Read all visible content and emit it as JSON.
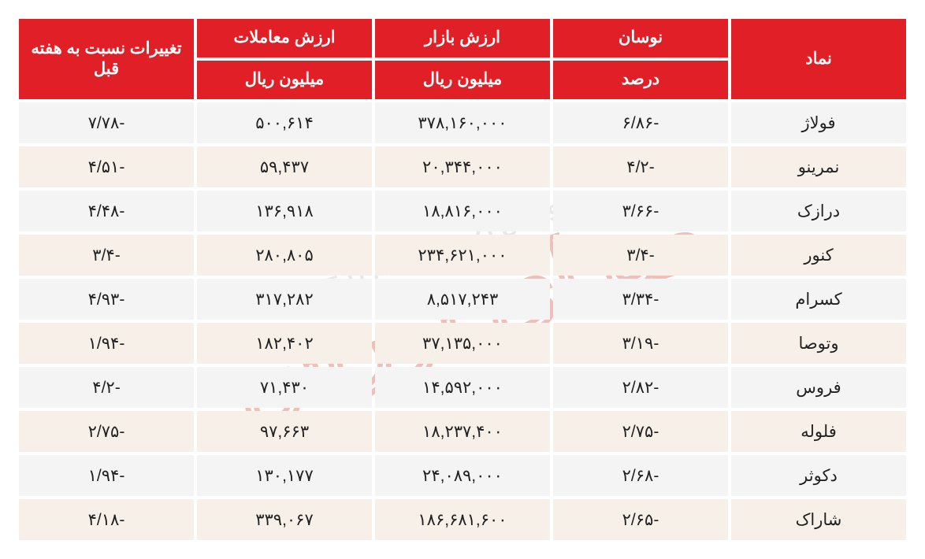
{
  "table": {
    "type": "table",
    "header_bg": "#e11f26",
    "header_fg": "#ffffff",
    "row_odd_bg": "#f4f4f4",
    "row_even_bg": "#f7f0e8",
    "font_family": "Tahoma",
    "cell_fontsize": 21,
    "header_fontsize": 21,
    "columns": [
      {
        "key": "symbol",
        "header_top": "نماد",
        "header_sub": "",
        "rowspan": 2,
        "width_pct": 20
      },
      {
        "key": "volatility",
        "header_top": "نوسان",
        "header_sub": "درصد",
        "rowspan": 1,
        "width_pct": 20
      },
      {
        "key": "market_value",
        "header_top": "ارزش بازار",
        "header_sub": "میلیون ریال",
        "rowspan": 1,
        "width_pct": 20
      },
      {
        "key": "trade_value",
        "header_top": "ارزش معاملات",
        "header_sub": "میلیون ریال",
        "rowspan": 1,
        "width_pct": 20
      },
      {
        "key": "wow_change",
        "header_top": "تغییرات نسبت به هفته قبل",
        "header_sub": "",
        "rowspan": 2,
        "width_pct": 20
      }
    ],
    "rows": [
      {
        "symbol": "فولاژ",
        "volatility": "-۶/۸۶",
        "market_value": "۳۷۸,۱۶۰,۰۰۰",
        "trade_value": "۵۰۰,۶۱۴",
        "wow_change": "-۷/۷۸"
      },
      {
        "symbol": "نمرینو",
        "volatility": "-۴/۲",
        "market_value": "۲۰,۳۴۴,۰۰۰",
        "trade_value": "۵۹,۴۳۷",
        "wow_change": "-۴/۵۱"
      },
      {
        "symbol": "درازک",
        "volatility": "-۳/۶۶",
        "market_value": "۱۸,۸۱۶,۰۰۰",
        "trade_value": "۱۳۶,۹۱۸",
        "wow_change": "-۴/۴۸"
      },
      {
        "symbol": "کنور",
        "volatility": "-۳/۴",
        "market_value": "۲۳۴,۶۲۱,۰۰۰",
        "trade_value": "۲۸۰,۸۰۵",
        "wow_change": "-۳/۴"
      },
      {
        "symbol": "کسرام",
        "volatility": "-۳/۳۴",
        "market_value": "۸,۵۱۷,۲۴۳",
        "trade_value": "۳۱۷,۲۸۲",
        "wow_change": "-۴/۹۳"
      },
      {
        "symbol": "وتوصا",
        "volatility": "-۳/۱۹",
        "market_value": "۳۷,۱۳۵,۰۰۰",
        "trade_value": "۱۸۲,۴۰۲",
        "wow_change": "-۱/۹۴"
      },
      {
        "symbol": "فروس",
        "volatility": "-۲/۸۲",
        "market_value": "۱۴,۵۹۲,۰۰۰",
        "trade_value": "۷۱,۴۳۰",
        "wow_change": "-۴/۲"
      },
      {
        "symbol": "فلوله",
        "volatility": "-۲/۷۵",
        "market_value": "۱۸,۲۳۷,۴۰۰",
        "trade_value": "۹۷,۶۶۳",
        "wow_change": "-۲/۷۵"
      },
      {
        "symbol": "دکوثر",
        "volatility": "-۲/۶۸",
        "market_value": "۲۴,۰۸۹,۰۰۰",
        "trade_value": "۱۳۰,۱۷۷",
        "wow_change": "-۱/۹۴"
      },
      {
        "symbol": "شاراک",
        "volatility": "-۲/۶۵",
        "market_value": "۱۸۶,۶۸۱,۶۰۰",
        "trade_value": "۳۳۹,۰۶۷",
        "wow_change": "-۴/۱۸"
      }
    ]
  },
  "watermark": {
    "latin": "SEDAYE BOURSE",
    "farsi": "صدای بورس",
    "text_color": "#b9b9b9",
    "logo_stroke": "#d23a2a",
    "rotation_deg": -18,
    "opacity": 0.32
  }
}
